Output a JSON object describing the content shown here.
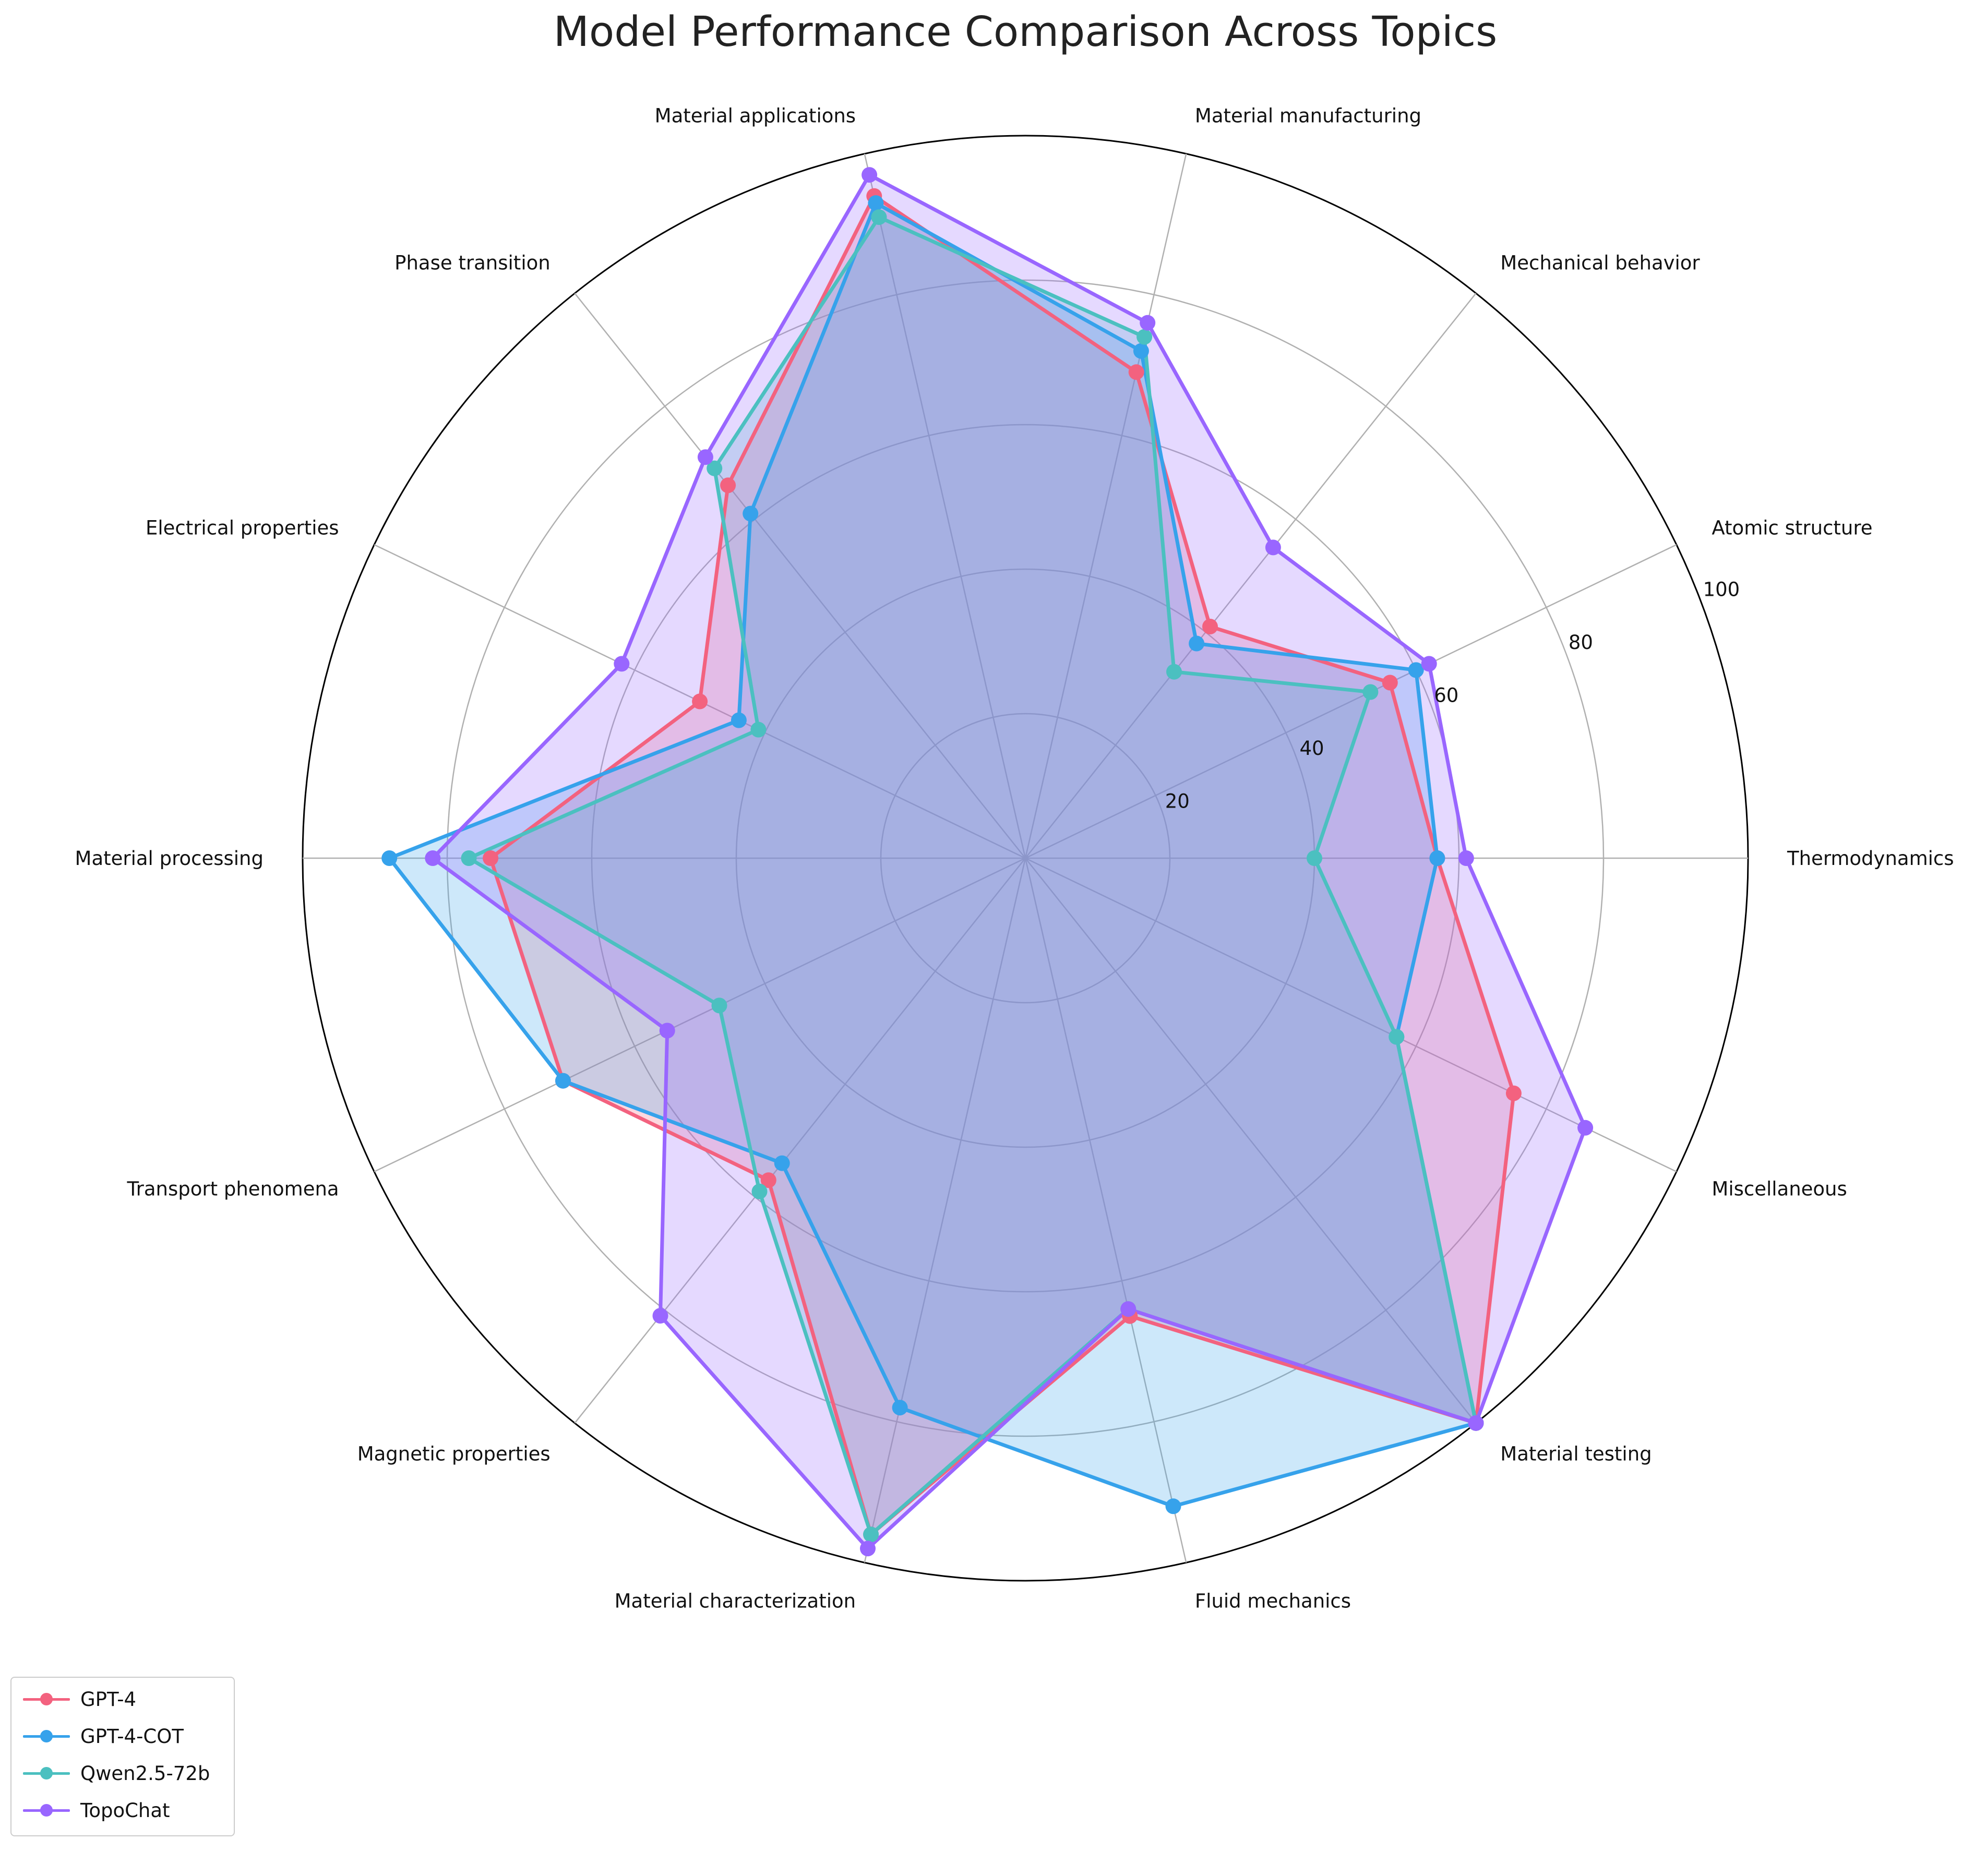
{
  "chart_data": {
    "type": "radar",
    "title": "Model Performance Comparison Across Topics",
    "categories": [
      "Thermodynamics",
      "Atomic structure",
      "Mechanical behavior",
      "Material manufacturing",
      "Material applications",
      "Phase transition",
      "Electrical properties",
      "Material processing",
      "Transport phenomena",
      "Magnetic properties",
      "Material characterization",
      "Fluid mechanics",
      "Material testing",
      "Miscellaneous"
    ],
    "rlim": [
      0,
      100
    ],
    "rticks": [
      20,
      40,
      60,
      80,
      100
    ],
    "rtick_labels": [
      "20",
      "40",
      "60",
      "80",
      "100"
    ],
    "grid": true,
    "legend_placement": "bottom-left",
    "series": [
      {
        "name": "GPT-4",
        "color": "#f3627f",
        "values": [
          57,
          56,
          41,
          69,
          94,
          66,
          50,
          74,
          71,
          57,
          96,
          65,
          100,
          75
        ]
      },
      {
        "name": "GPT-4-COT",
        "color": "#36a2eb",
        "values": [
          57,
          60,
          38,
          72,
          93,
          61,
          44,
          88,
          71,
          54,
          78,
          92,
          100,
          57
        ]
      },
      {
        "name": "Qwen2.5-72b",
        "color": "#4bc0c0",
        "values": [
          40,
          53,
          33,
          74,
          91,
          69,
          41,
          77,
          47,
          59,
          96,
          64,
          100,
          57
        ]
      },
      {
        "name": "TopoChat",
        "color": "#9966ff",
        "values": [
          61,
          62,
          55,
          76,
          97,
          71,
          62,
          82,
          55,
          81,
          98,
          64,
          100,
          86
        ]
      }
    ]
  }
}
